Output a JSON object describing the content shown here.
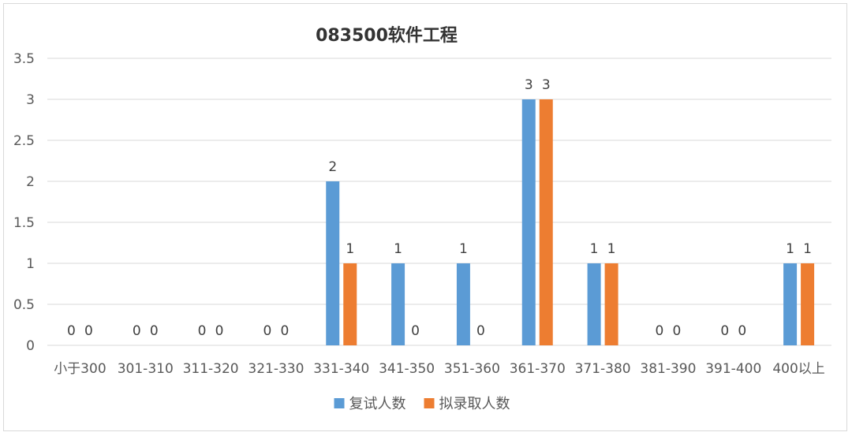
{
  "chart_data": {
    "type": "bar",
    "title": "083500软件工程",
    "categories": [
      "小于300",
      "301-310",
      "311-320",
      "321-330",
      "331-340",
      "341-350",
      "351-360",
      "361-370",
      "371-380",
      "381-390",
      "391-400",
      "400以上"
    ],
    "series": [
      {
        "name": "复试人数",
        "values": [
          0,
          0,
          0,
          0,
          2,
          1,
          1,
          3,
          1,
          0,
          0,
          1
        ],
        "color": "#5b9bd5"
      },
      {
        "name": "拟录取人数",
        "values": [
          0,
          0,
          0,
          0,
          1,
          0,
          0,
          3,
          1,
          0,
          0,
          1
        ],
        "color": "#ed7d31"
      }
    ],
    "ylim": [
      0,
      3.5
    ],
    "yticks": [
      "0",
      "0.5",
      "1",
      "1.5",
      "2",
      "2.5",
      "3",
      "3.5"
    ],
    "grid": true,
    "legend_position": "bottom",
    "data_labels": true
  }
}
